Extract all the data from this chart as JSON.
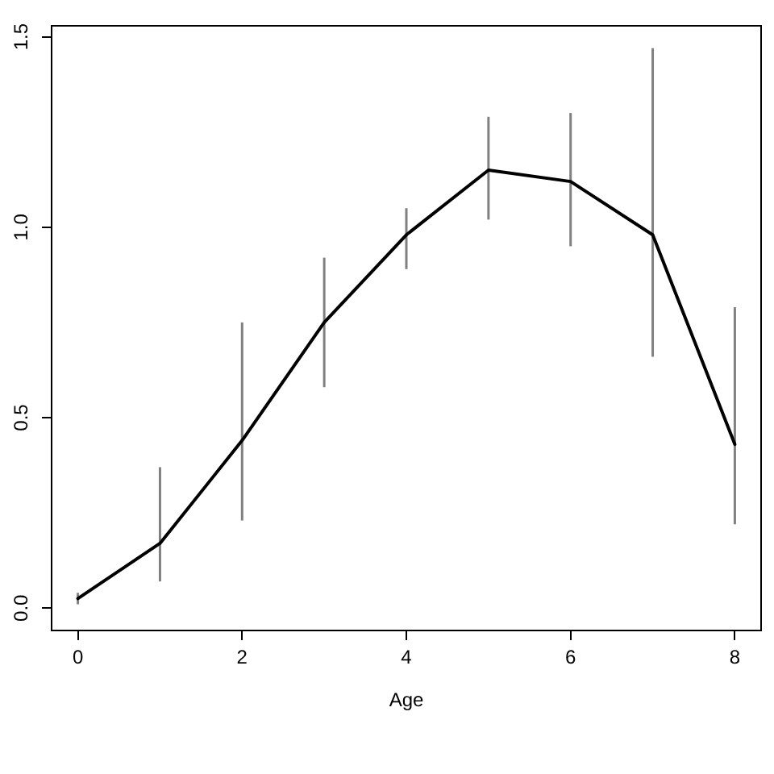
{
  "chart_data": {
    "type": "line",
    "xlabel": "Age",
    "x": [
      0,
      1,
      2,
      3,
      4,
      5,
      6,
      7,
      8
    ],
    "values": [
      0.025,
      0.17,
      0.44,
      0.75,
      0.98,
      1.15,
      1.12,
      0.98,
      0.43
    ],
    "errors": [
      [
        0.01,
        0.04
      ],
      [
        0.07,
        0.37
      ],
      [
        0.23,
        0.75
      ],
      [
        0.58,
        0.92
      ],
      [
        0.89,
        1.05
      ],
      [
        1.02,
        1.29
      ],
      [
        0.95,
        1.3
      ],
      [
        0.66,
        1.47
      ],
      [
        0.22,
        0.79
      ]
    ],
    "color": "#000000",
    "marker": "none",
    "line_style": "solid",
    "xlim": [
      -0.32,
      8.32
    ],
    "xticks": [
      0,
      2,
      4,
      6,
      8
    ],
    "ylim": [
      -0.0588,
      1.5288
    ],
    "yticks": [
      {
        "value": 0,
        "label": "0.0"
      },
      0.5,
      {
        "value": 1,
        "label": "1.0"
      },
      1.5
    ]
  }
}
